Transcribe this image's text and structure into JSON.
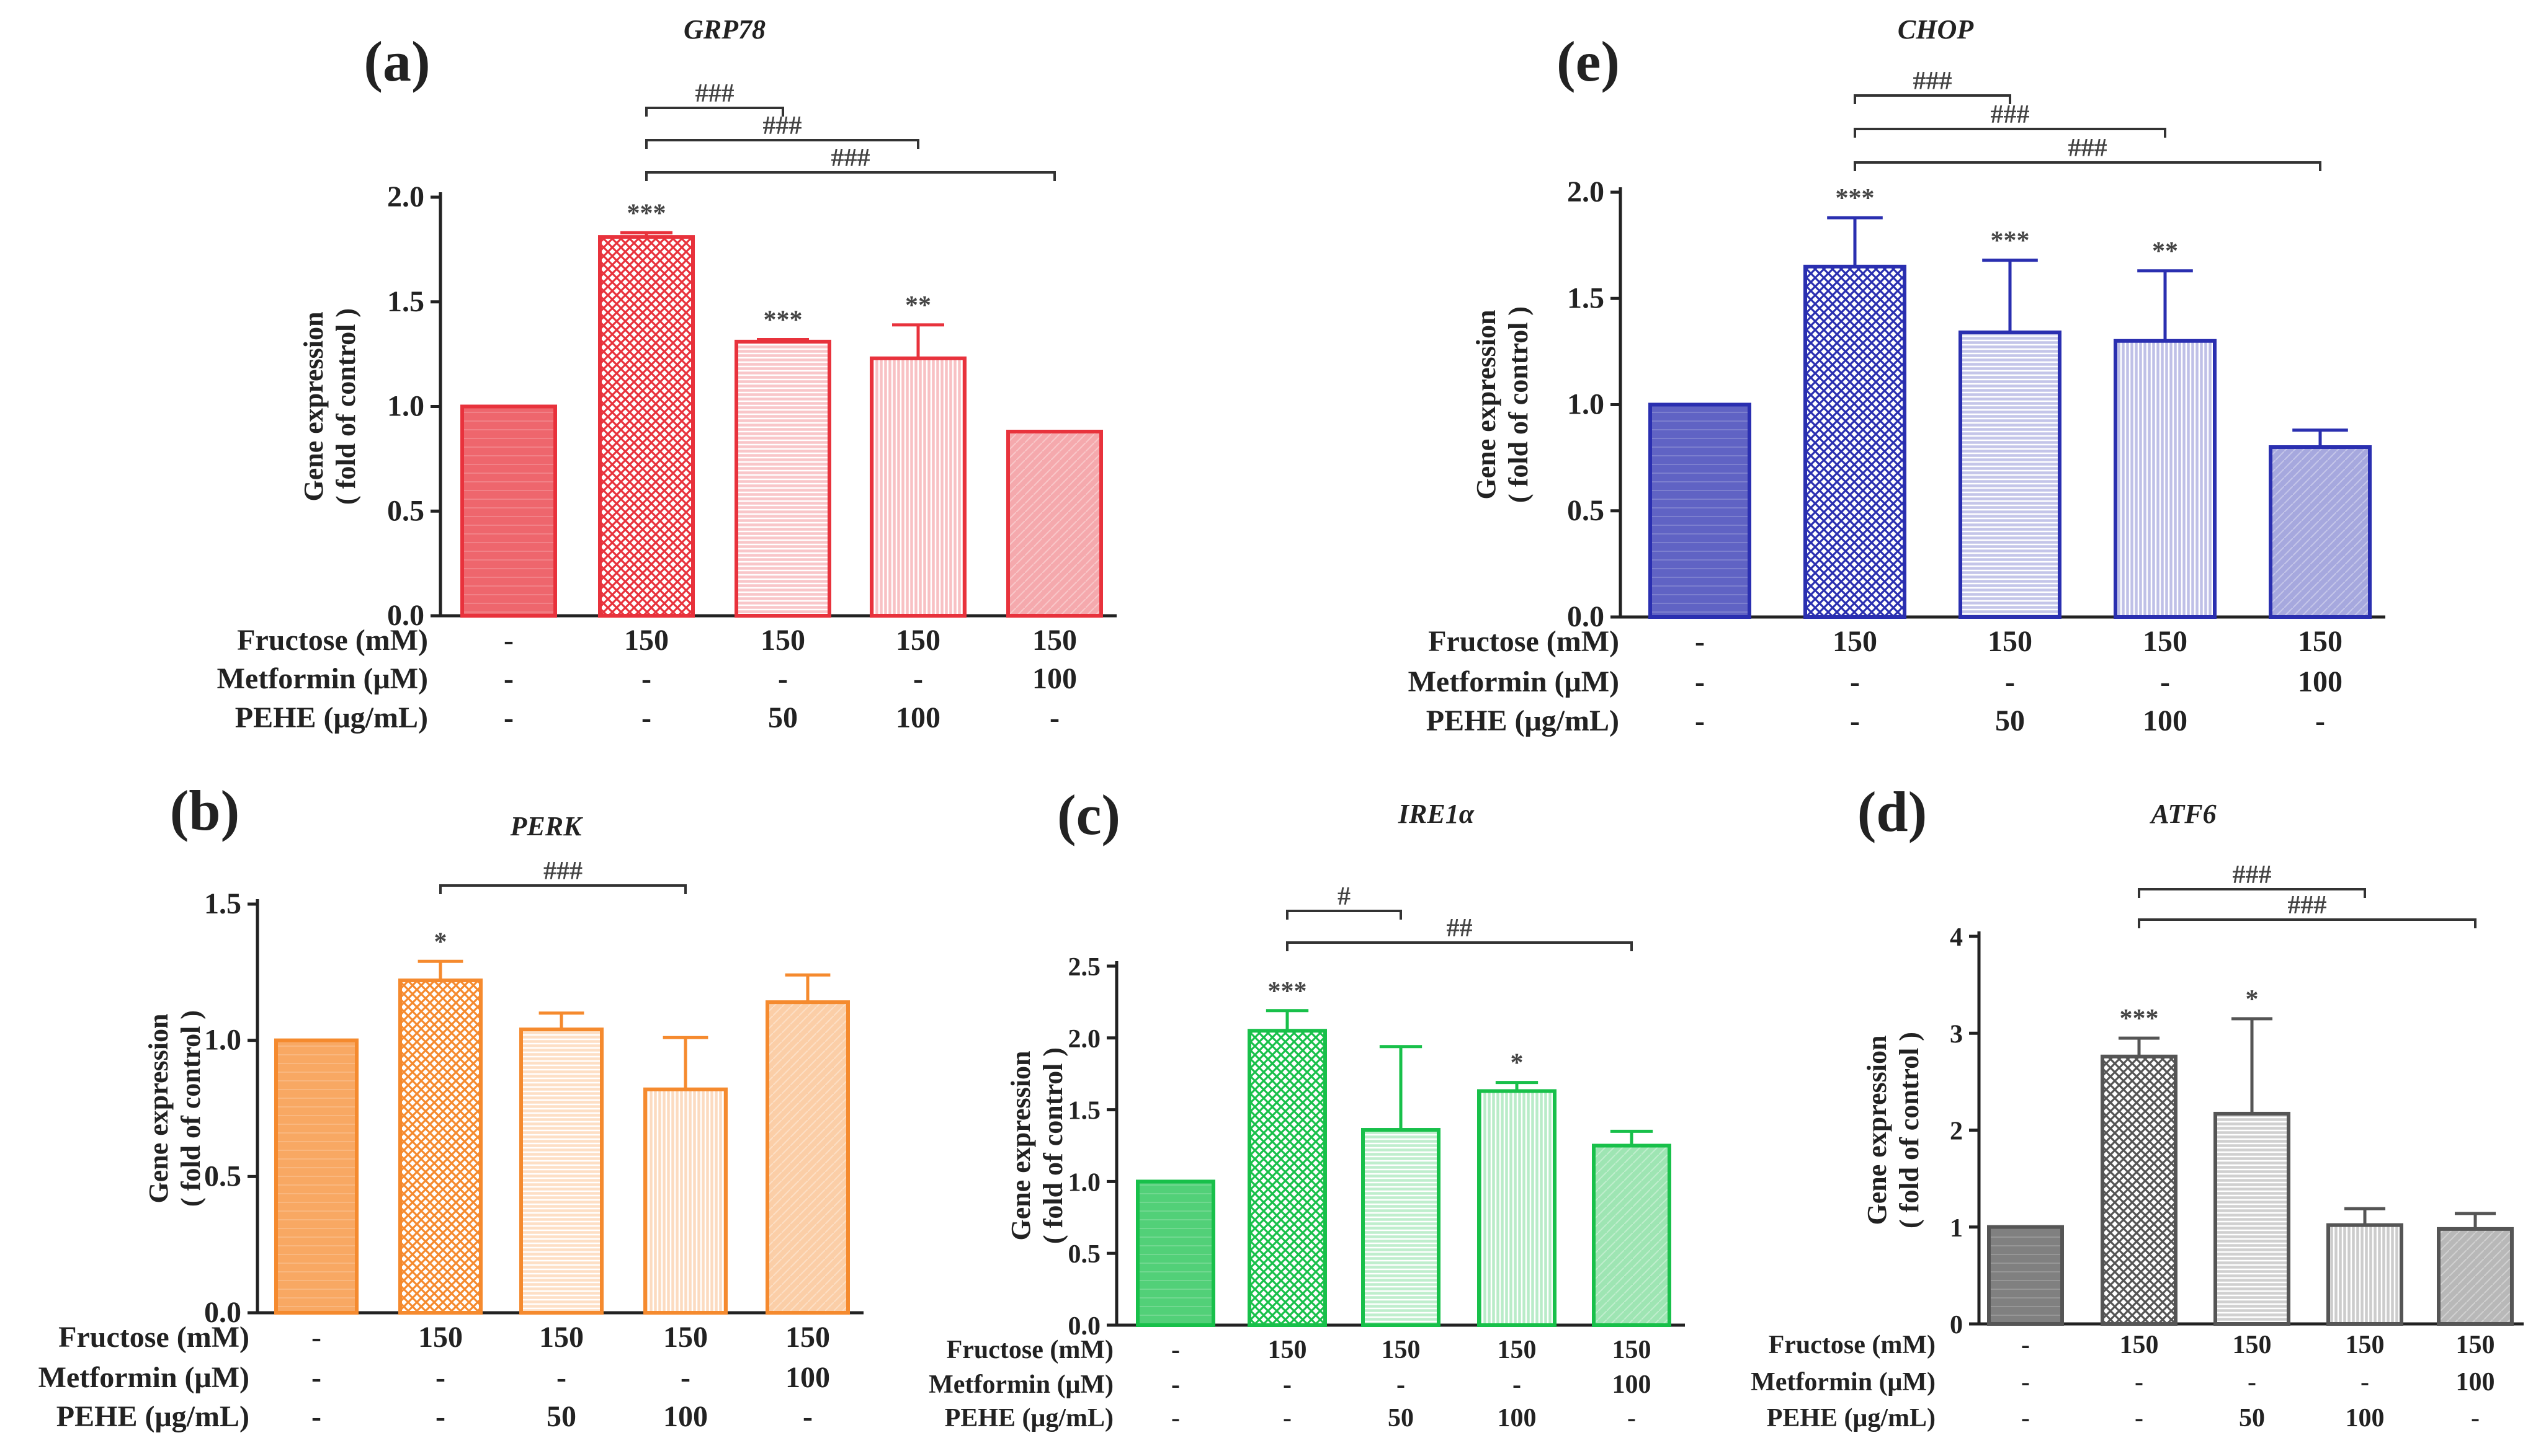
{
  "chart_data": [
    {
      "id": "a",
      "panel_label": "(a)",
      "title": "GRP78",
      "type": "bar",
      "ylabel": [
        "Gene expression",
        "( fold of control )"
      ],
      "ylim": [
        0,
        2.0
      ],
      "yticks": [
        "0.0",
        "0.5",
        "1.0",
        "1.5",
        "2.0"
      ],
      "color": "#e8323c",
      "row_labels": [
        "Fructose (mM)",
        "Metformin (μM)",
        "PEHE (μg/mL)"
      ],
      "groups": [
        {
          "rows": [
            "-",
            "-",
            "-"
          ],
          "value": 1.0,
          "error": 0.0,
          "sig": ""
        },
        {
          "rows": [
            "150",
            "-",
            "-"
          ],
          "value": 1.81,
          "error": 0.02,
          "sig": "***"
        },
        {
          "rows": [
            "150",
            "-",
            "50"
          ],
          "value": 1.31,
          "error": 0.01,
          "sig": "***"
        },
        {
          "rows": [
            "150",
            "-",
            "100"
          ],
          "value": 1.23,
          "error": 0.16,
          "sig": "**"
        },
        {
          "rows": [
            "150",
            "100",
            "-"
          ],
          "value": 0.88,
          "error": 0.0,
          "sig": ""
        }
      ],
      "brackets": [
        {
          "from": 1,
          "to": 2,
          "label": "###"
        },
        {
          "from": 1,
          "to": 3,
          "label": "###"
        },
        {
          "from": 1,
          "to": 4,
          "label": "###"
        }
      ]
    },
    {
      "id": "e",
      "panel_label": "(e)",
      "title": "CHOP",
      "type": "bar",
      "ylabel": [
        "Gene expression",
        "( fold of control )"
      ],
      "ylim": [
        0,
        2.0
      ],
      "yticks": [
        "0.0",
        "0.5",
        "1.0",
        "1.5",
        "2.0"
      ],
      "color": "#2a2fb0",
      "row_labels": [
        "Fructose (mM)",
        "Metformin (μM)",
        "PEHE (μg/mL)"
      ],
      "groups": [
        {
          "rows": [
            "-",
            "-",
            "-"
          ],
          "value": 1.0,
          "error": 0.0,
          "sig": ""
        },
        {
          "rows": [
            "150",
            "-",
            "-"
          ],
          "value": 1.65,
          "error": 0.23,
          "sig": "***"
        },
        {
          "rows": [
            "150",
            "-",
            "50"
          ],
          "value": 1.34,
          "error": 0.34,
          "sig": "***"
        },
        {
          "rows": [
            "150",
            "-",
            "100"
          ],
          "value": 1.3,
          "error": 0.33,
          "sig": "**"
        },
        {
          "rows": [
            "150",
            "100",
            "-"
          ],
          "value": 0.8,
          "error": 0.08,
          "sig": ""
        }
      ],
      "brackets": [
        {
          "from": 1,
          "to": 2,
          "label": "###"
        },
        {
          "from": 1,
          "to": 3,
          "label": "###"
        },
        {
          "from": 1,
          "to": 4,
          "label": "###"
        }
      ]
    },
    {
      "id": "b",
      "panel_label": "(b)",
      "title": "PERK",
      "type": "bar",
      "ylabel": [
        "Gene expression",
        "( fold of control )"
      ],
      "ylim": [
        0,
        1.5
      ],
      "yticks": [
        "0.0",
        "0.5",
        "1.0",
        "1.5"
      ],
      "color": "#f58a2e",
      "row_labels": [
        "Fructose (mM)",
        "Metformin (μM)",
        "PEHE (μg/mL)"
      ],
      "groups": [
        {
          "rows": [
            "-",
            "-",
            "-"
          ],
          "value": 1.0,
          "error": 0.0,
          "sig": ""
        },
        {
          "rows": [
            "150",
            "-",
            "-"
          ],
          "value": 1.22,
          "error": 0.07,
          "sig": "*"
        },
        {
          "rows": [
            "150",
            "-",
            "50"
          ],
          "value": 1.04,
          "error": 0.06,
          "sig": ""
        },
        {
          "rows": [
            "150",
            "-",
            "100"
          ],
          "value": 0.82,
          "error": 0.19,
          "sig": ""
        },
        {
          "rows": [
            "150",
            "100",
            "-"
          ],
          "value": 1.14,
          "error": 0.1,
          "sig": ""
        }
      ],
      "brackets": [
        {
          "from": 1,
          "to": 3,
          "label": "###"
        }
      ]
    },
    {
      "id": "c",
      "panel_label": "(c)",
      "title": "IRE1α",
      "type": "bar",
      "ylabel": [
        "Gene expression",
        "( fold of control )"
      ],
      "ylim": [
        0,
        2.5
      ],
      "yticks": [
        "0.0",
        "0.5",
        "1.0",
        "1.5",
        "2.0",
        "2.5"
      ],
      "color": "#18c04a",
      "row_labels": [
        "Fructose (mM)",
        "Metformin (μM)",
        "PEHE (μg/mL)"
      ],
      "groups": [
        {
          "rows": [
            "-",
            "-",
            "-"
          ],
          "value": 1.0,
          "error": 0.0,
          "sig": ""
        },
        {
          "rows": [
            "150",
            "-",
            "-"
          ],
          "value": 2.05,
          "error": 0.14,
          "sig": "***"
        },
        {
          "rows": [
            "150",
            "-",
            "50"
          ],
          "value": 1.36,
          "error": 0.58,
          "sig": ""
        },
        {
          "rows": [
            "150",
            "-",
            "100"
          ],
          "value": 1.63,
          "error": 0.06,
          "sig": "*"
        },
        {
          "rows": [
            "150",
            "100",
            "-"
          ],
          "value": 1.25,
          "error": 0.1,
          "sig": ""
        }
      ],
      "brackets": [
        {
          "from": 1,
          "to": 2,
          "label": "#"
        },
        {
          "from": 1,
          "to": 4,
          "label": "##"
        }
      ]
    },
    {
      "id": "d",
      "panel_label": "(d)",
      "title": "ATF6",
      "type": "bar",
      "ylabel": [
        "Gene expression",
        "( fold of control )"
      ],
      "ylim": [
        0,
        4
      ],
      "yticks": [
        "0",
        "1",
        "2",
        "3",
        "4"
      ],
      "color": "#555555",
      "row_labels": [
        "Fructose (mM)",
        "Metformin (μM)",
        "PEHE (μg/mL)"
      ],
      "groups": [
        {
          "rows": [
            "-",
            "-",
            "-"
          ],
          "value": 1.0,
          "error": 0.0,
          "sig": ""
        },
        {
          "rows": [
            "150",
            "-",
            "-"
          ],
          "value": 2.76,
          "error": 0.19,
          "sig": "***"
        },
        {
          "rows": [
            "150",
            "-",
            "50"
          ],
          "value": 2.17,
          "error": 0.98,
          "sig": "*"
        },
        {
          "rows": [
            "150",
            "-",
            "100"
          ],
          "value": 1.02,
          "error": 0.17,
          "sig": ""
        },
        {
          "rows": [
            "150",
            "100",
            "-"
          ],
          "value": 0.98,
          "error": 0.16,
          "sig": ""
        }
      ],
      "brackets": [
        {
          "from": 1,
          "to": 3,
          "label": "###"
        },
        {
          "from": 1,
          "to": 4,
          "label": "###"
        }
      ]
    }
  ]
}
